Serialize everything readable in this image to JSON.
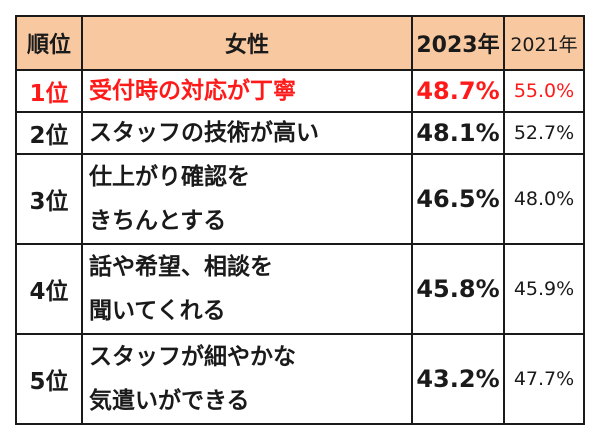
{
  "header": {
    "rank": "順位",
    "gender": "女性",
    "year_current": "2023年",
    "year_prev": "2021年"
  },
  "colors": {
    "header_bg": "#f8c9a0",
    "highlight": "#ff1a1a",
    "text": "#1a1a1a"
  },
  "rows": [
    {
      "rank": "1位",
      "item_lines": [
        "受付時の対応が丁寧"
      ],
      "v2023": "48.7%",
      "v2021": "55.0%"
    },
    {
      "rank": "2位",
      "item_lines": [
        "スタッフの技術が高い"
      ],
      "v2023": "48.1%",
      "v2021": "52.7%"
    },
    {
      "rank": "3位",
      "item_lines": [
        "仕上がり確認を",
        "きちんとする"
      ],
      "v2023": "46.5%",
      "v2021": "48.0%"
    },
    {
      "rank": "4位",
      "item_lines": [
        "話や希望、相談を",
        "聞いてくれる"
      ],
      "v2023": "45.8%",
      "v2021": "45.9%"
    },
    {
      "rank": "5位",
      "item_lines": [
        "スタッフが細やかな",
        "気遣いができる"
      ],
      "v2023": "43.2%",
      "v2021": "47.7%"
    }
  ]
}
